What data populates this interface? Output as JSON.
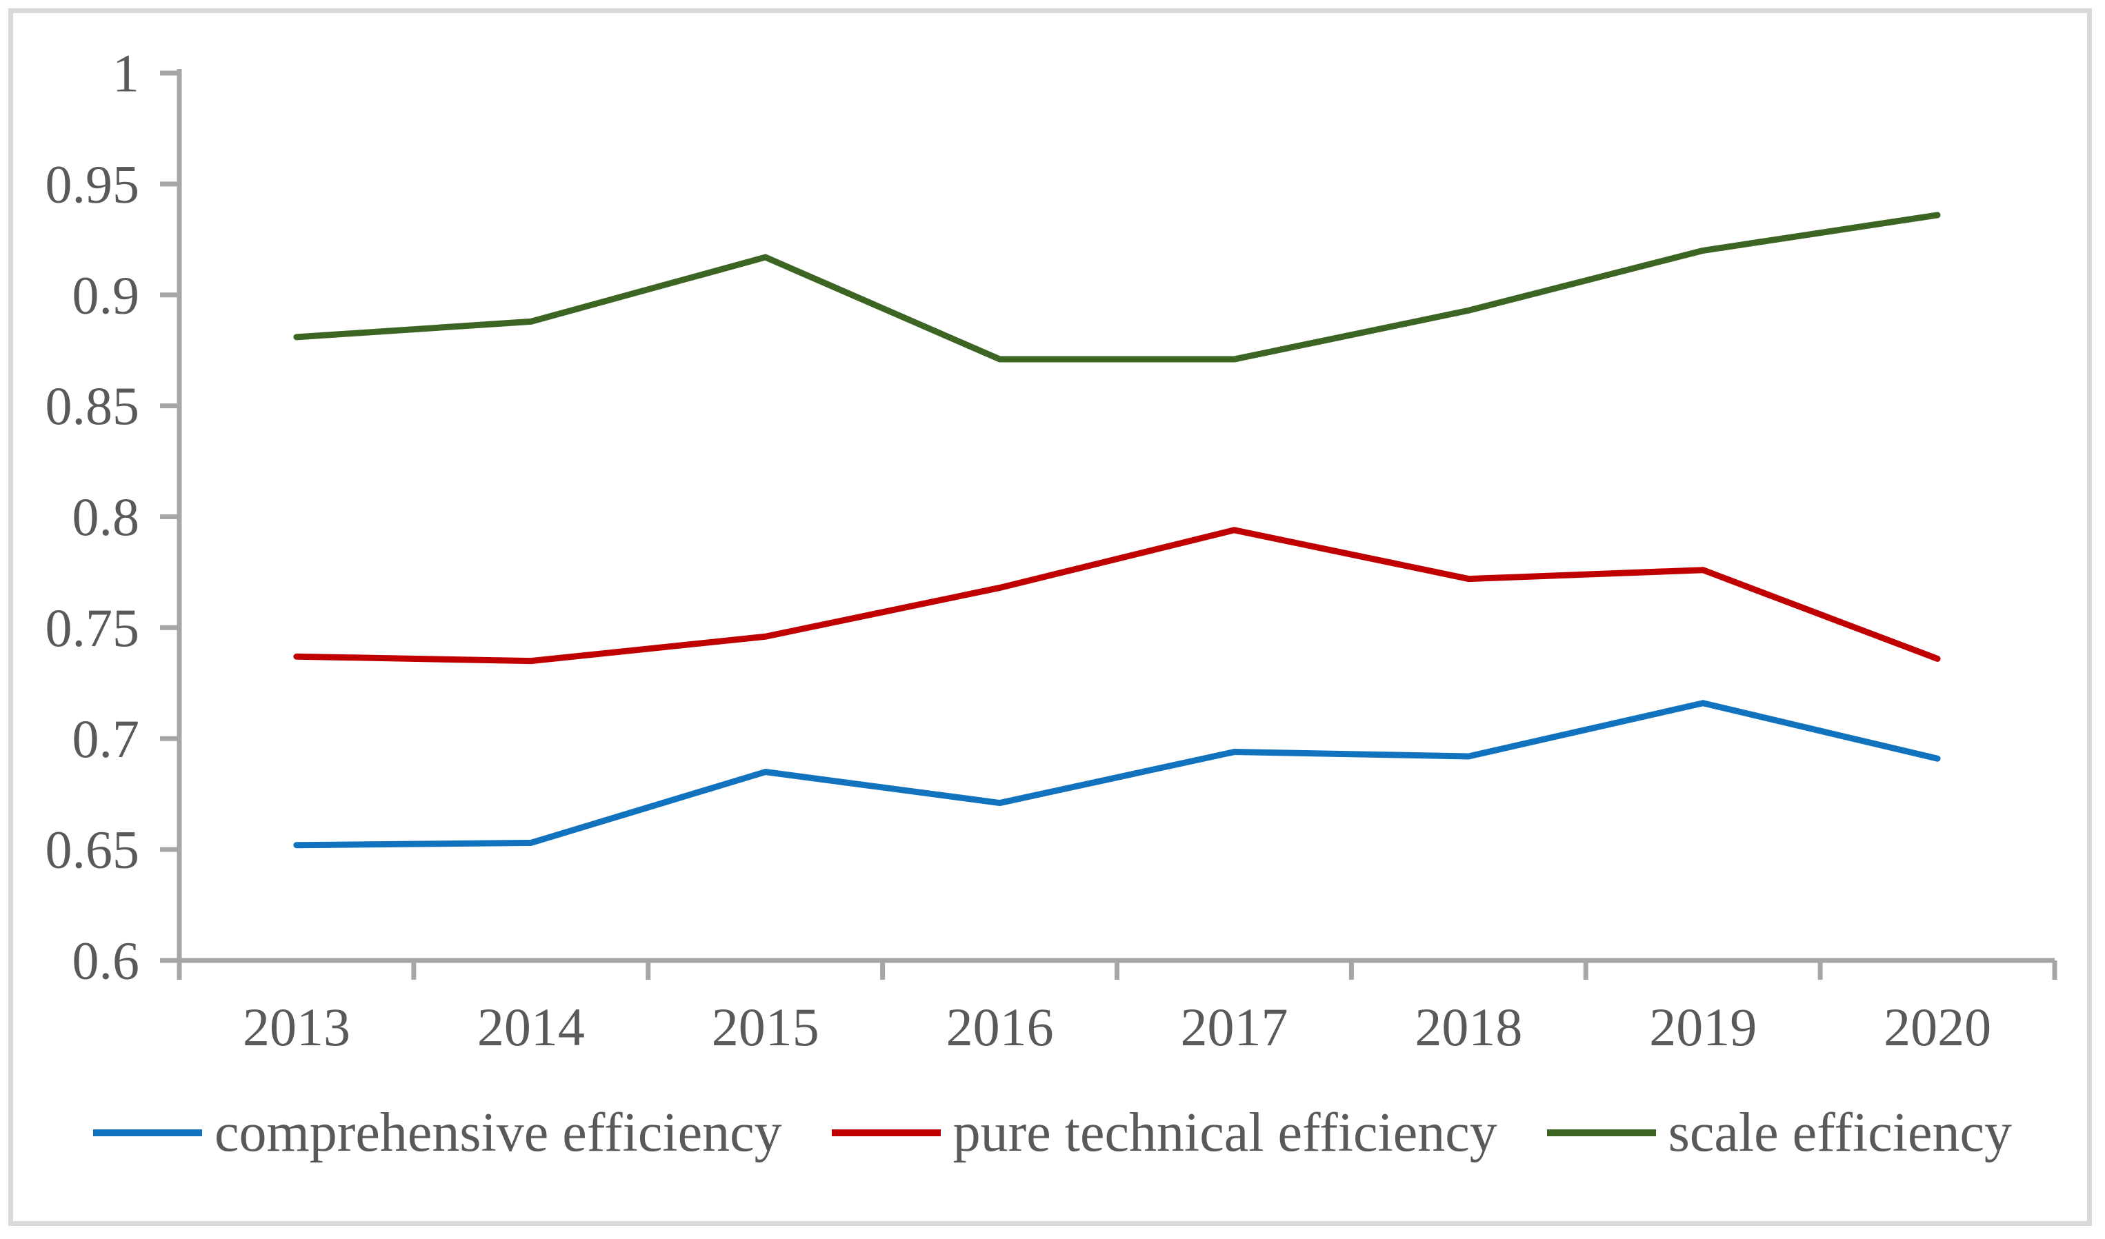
{
  "chart_data": {
    "type": "line",
    "title": "",
    "xlabel": "",
    "ylabel": "",
    "categories": [
      "2013",
      "2014",
      "2015",
      "2016",
      "2017",
      "2018",
      "2019",
      "2020"
    ],
    "series": [
      {
        "name": "comprehensive efficiency",
        "color": "#1172BE",
        "values": [
          0.652,
          0.653,
          0.685,
          0.671,
          0.694,
          0.692,
          0.716,
          0.691
        ]
      },
      {
        "name": "pure technical efficiency",
        "color": "#C00000",
        "values": [
          0.737,
          0.735,
          0.746,
          0.768,
          0.794,
          0.772,
          0.776,
          0.736
        ]
      },
      {
        "name": "scale efficiency",
        "color": "#3C6423",
        "values": [
          0.881,
          0.888,
          0.917,
          0.871,
          0.871,
          0.893,
          0.92,
          0.936
        ]
      }
    ],
    "ylim": [
      0.6,
      1.0
    ],
    "yticks": [
      0.6,
      0.65,
      0.7,
      0.75,
      0.8,
      0.85,
      0.9,
      0.95,
      1
    ],
    "ytick_labels": [
      "0.6",
      "0.65",
      "0.7",
      "0.75",
      "0.8",
      "0.85",
      "0.9",
      "0.95",
      "1"
    ],
    "grid": false,
    "legend_position": "bottom",
    "colors": {
      "axis": "#A6A6A6",
      "tick_label": "#595959",
      "legend_text": "#595959",
      "frame_border": "#D9D9D9",
      "background": "#FFFFFF"
    }
  }
}
